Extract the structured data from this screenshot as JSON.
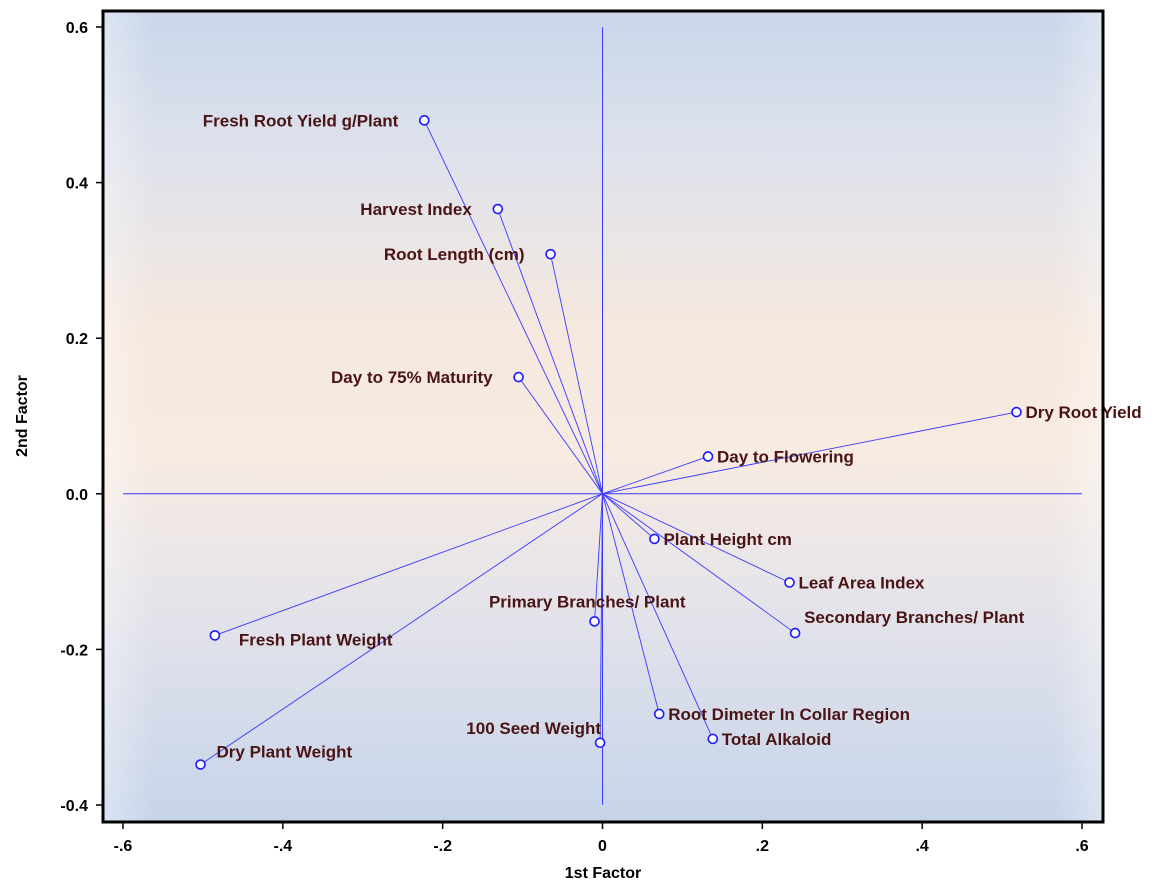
{
  "chart_data": {
    "type": "scatter",
    "subtype": "biplot",
    "title": "",
    "xlabel": "1st Factor",
    "ylabel": "2nd Factor",
    "xlim": [
      -0.6,
      0.6
    ],
    "ylim": [
      -0.4,
      0.6
    ],
    "x_ticks": [
      {
        "value": -0.6,
        "label": "-.6"
      },
      {
        "value": -0.4,
        "label": "-.4"
      },
      {
        "value": -0.2,
        "label": "-.2"
      },
      {
        "value": 0.0,
        "label": "0"
      },
      {
        "value": 0.2,
        "label": ".2"
      },
      {
        "value": 0.4,
        "label": ".4"
      },
      {
        "value": 0.6,
        "label": ".6"
      }
    ],
    "y_ticks": [
      {
        "value": 0.6,
        "label": "0.6"
      },
      {
        "value": 0.4,
        "label": "0.4"
      },
      {
        "value": 0.2,
        "label": "0.2"
      },
      {
        "value": 0.0,
        "label": "0.0"
      },
      {
        "value": -0.2,
        "label": "-0.2"
      },
      {
        "value": -0.4,
        "label": "-0.4"
      }
    ],
    "reference_lines": {
      "x": 0,
      "y": 0
    },
    "vectors_from_origin": true,
    "line_color": "#3a3aff",
    "marker_color": "#1a1aff",
    "label_color": "#4a1414",
    "points": [
      {
        "label": "Fresh Root Yield g/Plant",
        "x": -0.223,
        "y": 0.48,
        "anchor": "left"
      },
      {
        "label": "Harvest Index",
        "x": -0.131,
        "y": 0.366,
        "anchor": "left"
      },
      {
        "label": "Root Length (cm)",
        "x": -0.065,
        "y": 0.308,
        "anchor": "left"
      },
      {
        "label": "Day to 75% Maturity",
        "x": -0.105,
        "y": 0.15,
        "anchor": "left"
      },
      {
        "label": "Dry Root Yield",
        "x": 0.518,
        "y": 0.105,
        "anchor": "right"
      },
      {
        "label": "Day to Flowering",
        "x": 0.132,
        "y": 0.048,
        "anchor": "right"
      },
      {
        "label": "Plant Height cm",
        "x": 0.065,
        "y": -0.058,
        "anchor": "right"
      },
      {
        "label": "Leaf Area Index",
        "x": 0.234,
        "y": -0.114,
        "anchor": "right"
      },
      {
        "label": "Secondary Branches/ Plant",
        "x": 0.241,
        "y": -0.179,
        "anchor": "above-right"
      },
      {
        "label": "Primary Branches/ Plant",
        "x": -0.01,
        "y": -0.164,
        "anchor": "above-left"
      },
      {
        "label": "Fresh Plant Weight",
        "x": -0.485,
        "y": -0.182,
        "anchor": "below-right"
      },
      {
        "label": "Root Dimeter In Collar Region",
        "x": 0.071,
        "y": -0.283,
        "anchor": "right"
      },
      {
        "label": "100 Seed Weight",
        "x": -0.003,
        "y": -0.32,
        "anchor": "above-left"
      },
      {
        "label": "Total Alkaloid",
        "x": 0.138,
        "y": -0.315,
        "anchor": "right"
      },
      {
        "label": "Dry Plant Weight",
        "x": -0.503,
        "y": -0.348,
        "anchor": "above-right"
      }
    ]
  }
}
